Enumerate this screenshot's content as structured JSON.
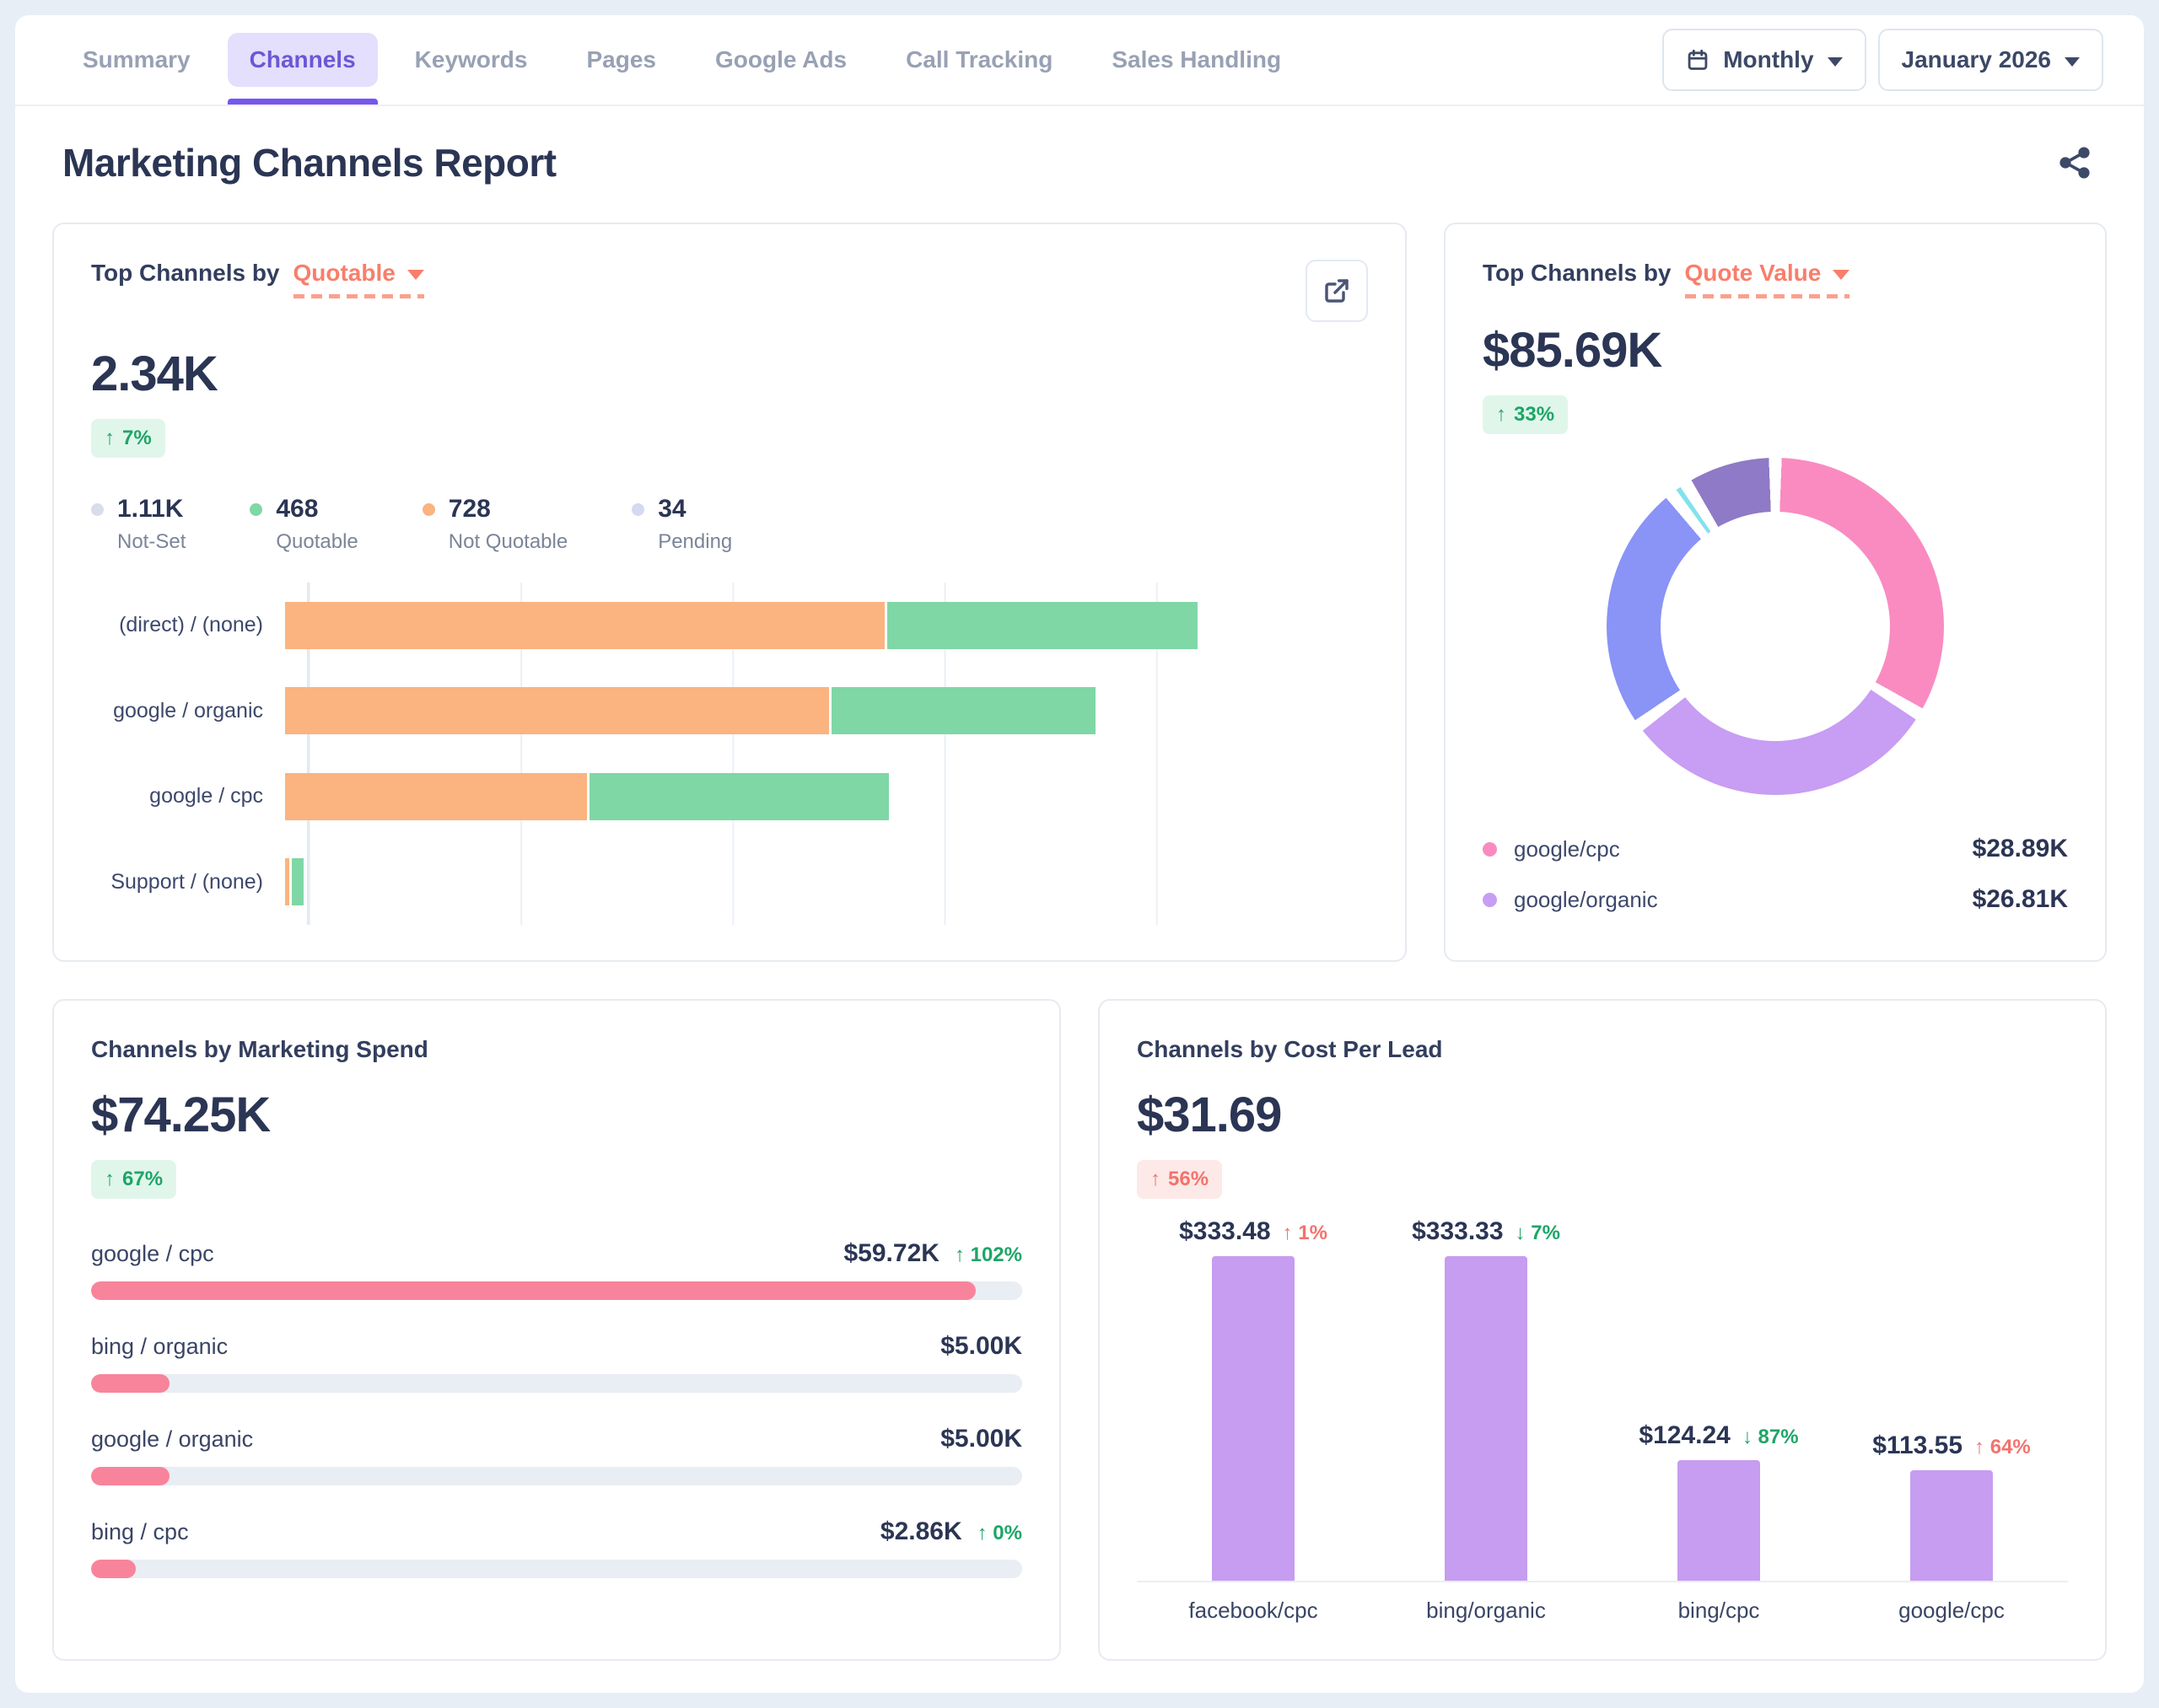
{
  "colors": {
    "accent_coral": "#F97E6B",
    "positive_green": "#1EA567",
    "negative_red": "#F4726D",
    "navy_text": "#2B3554",
    "active_tab_purple": "#7557EC",
    "bar_orange": "#FBB37F",
    "bar_green": "#7FD7A6",
    "bar_pink": "#F8849B",
    "bar_purple": "#C69DF0"
  },
  "nav": {
    "tabs": [
      {
        "label": "Summary",
        "active": false
      },
      {
        "label": "Channels",
        "active": true
      },
      {
        "label": "Keywords",
        "active": false
      },
      {
        "label": "Pages",
        "active": false
      },
      {
        "label": "Google Ads",
        "active": false
      },
      {
        "label": "Call Tracking",
        "active": false
      },
      {
        "label": "Sales Handling",
        "active": false
      }
    ],
    "granularity": "Monthly",
    "period": "January 2026"
  },
  "title": "Marketing Channels Report",
  "quotable_card": {
    "title_prefix": "Top Channels by",
    "selector": "Quotable",
    "value": "2.34K",
    "change": {
      "dir": "up",
      "label": "7%",
      "tone": "positive"
    },
    "legend": [
      {
        "value": "1.11K",
        "label": "Not-Set",
        "color": "#D8DDE9"
      },
      {
        "value": "468",
        "label": "Quotable",
        "color": "#7FD7A6"
      },
      {
        "value": "728",
        "label": "Not Quotable",
        "color": "#FBB37F"
      },
      {
        "value": "34",
        "label": "Pending",
        "color": "#D5D9F1"
      }
    ],
    "chart_data": {
      "type": "stacked_bar_horizontal",
      "categories": [
        "(direct) / (none)",
        "google / organic",
        "google / cpc",
        "Support / (none)"
      ],
      "series": [
        {
          "name": "Not Quotable",
          "color": "#FBB37F",
          "pct_of_axis": [
            55.4,
            50.2,
            27.9,
            0.4
          ]
        },
        {
          "name": "Quotable",
          "color": "#7FD7A6",
          "pct_of_axis": [
            28.6,
            24.4,
            27.6,
            1.1
          ]
        }
      ],
      "gridline_intervals": 5,
      "x_axis_labels_visible": false
    }
  },
  "quote_value_card": {
    "title_prefix": "Top Channels by",
    "selector": "Quote Value",
    "value": "$85.69K",
    "change": {
      "dir": "up",
      "label": "33%",
      "tone": "positive"
    },
    "chart_data": {
      "type": "donut",
      "segments": [
        {
          "label": "google/cpc",
          "display_value": "$28.89K",
          "pct": 33.7,
          "color": "#F98BC1"
        },
        {
          "label": "google/organic",
          "display_value": "$26.81K",
          "pct": 31.3,
          "color": "#C89DF4"
        },
        {
          "label": null,
          "pct": 24.4,
          "color": "#8A93F6"
        },
        {
          "label": null,
          "pct": 1.7,
          "color": "#83E1EE"
        },
        {
          "label": null,
          "pct": 8.9,
          "color": "#8E7AC6"
        }
      ]
    },
    "legend": [
      {
        "label": "google/cpc",
        "value": "$28.89K",
        "color": "#F98BC1"
      },
      {
        "label": "google/organic",
        "value": "$26.81K",
        "color": "#C89DF4"
      }
    ]
  },
  "spend_card": {
    "title": "Channels by Marketing Spend",
    "value": "$74.25K",
    "change": {
      "dir": "up",
      "label": "67%",
      "tone": "positive"
    },
    "chart_data": {
      "type": "bar_horizontal_progress",
      "items": [
        {
          "label": "google / cpc",
          "value": "$59.72K",
          "change": {
            "dir": "up",
            "label": "102%",
            "tone": "positive"
          },
          "fill_pct": 95
        },
        {
          "label": "bing / organic",
          "value": "$5.00K",
          "change": null,
          "fill_pct": 8.4
        },
        {
          "label": "google / organic",
          "value": "$5.00K",
          "change": null,
          "fill_pct": 8.4
        },
        {
          "label": "bing / cpc",
          "value": "$2.86K",
          "change": {
            "dir": "up",
            "label": "0%",
            "tone": "positive"
          },
          "fill_pct": 4.8
        }
      ]
    }
  },
  "cpl_card": {
    "title": "Channels by Cost Per Lead",
    "value": "$31.69",
    "change": {
      "dir": "up",
      "label": "56%",
      "tone": "negative"
    },
    "chart_data": {
      "type": "bar",
      "categories": [
        "facebook/cpc",
        "bing/organic",
        "bing/cpc",
        "google/cpc"
      ],
      "values": [
        333.48,
        333.33,
        124.24,
        113.55
      ],
      "display_values": [
        "$333.48",
        "$333.33",
        "$124.24",
        "$113.55"
      ],
      "changes": [
        {
          "dir": "up",
          "label": "1%",
          "tone": "negative"
        },
        {
          "dir": "down",
          "label": "7%",
          "tone": "positive"
        },
        {
          "dir": "down",
          "label": "87%",
          "tone": "positive"
        },
        {
          "dir": "up",
          "label": "64%",
          "tone": "negative"
        }
      ]
    }
  }
}
